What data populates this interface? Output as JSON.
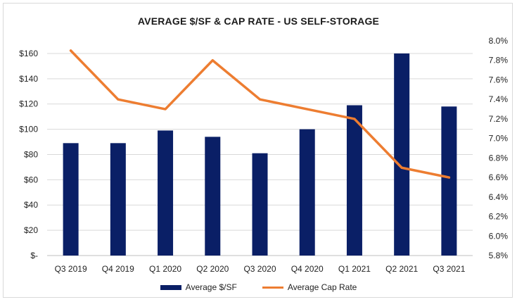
{
  "chart_data": {
    "type": "bar",
    "title": "AVERAGE $/SF & CAP RATE  - US SELF-STORAGE",
    "categories": [
      "Q3 2019",
      "Q4 2019",
      "Q1 2020",
      "Q2 2020",
      "Q3 2020",
      "Q4 2020",
      "Q1 2021",
      "Q2 2021",
      "Q3 2021"
    ],
    "series": [
      {
        "name": "Average $/SF",
        "type": "bar",
        "axis": "left",
        "color": "#0a1f66",
        "values": [
          89,
          89,
          99,
          94,
          81,
          100,
          119,
          160,
          118
        ]
      },
      {
        "name": "Average Cap Rate",
        "type": "line",
        "axis": "right",
        "color": "#ed7d31",
        "values": [
          7.9,
          7.4,
          7.3,
          7.8,
          7.4,
          7.3,
          7.2,
          6.7,
          6.6
        ]
      }
    ],
    "y_left": {
      "ylim": [
        0,
        170
      ],
      "tick_values": [
        0,
        20,
        40,
        60,
        80,
        100,
        120,
        140,
        160
      ],
      "tick_labels": [
        "$-",
        "$20",
        "$40",
        "$60",
        "$80",
        "$100",
        "$120",
        "$140",
        "$160"
      ]
    },
    "y_right": {
      "ylim": [
        5.8,
        8.0
      ],
      "tick_values": [
        5.8,
        6.0,
        6.2,
        6.4,
        6.6,
        6.8,
        7.0,
        7.2,
        7.4,
        7.6,
        7.8,
        8.0
      ],
      "tick_labels": [
        "5.8%",
        "6.0%",
        "6.2%",
        "6.4%",
        "6.6%",
        "6.8%",
        "7.0%",
        "7.2%",
        "7.4%",
        "7.6%",
        "7.8%",
        "8.0%"
      ]
    },
    "grid": true,
    "legend": "bottom"
  }
}
